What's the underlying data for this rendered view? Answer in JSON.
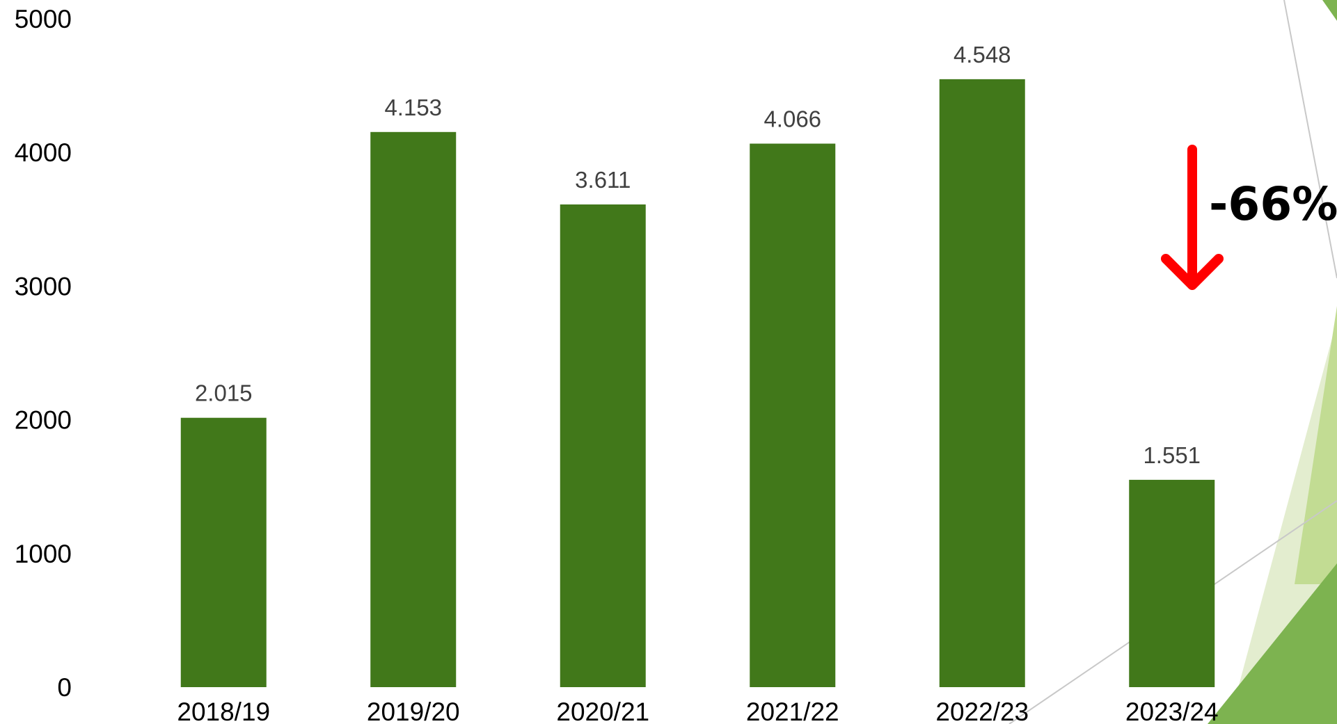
{
  "chart_data": {
    "type": "bar",
    "categories": [
      "2018/19",
      "2019/20",
      "2020/21",
      "2021/22",
      "2022/23",
      "2023/24"
    ],
    "values": [
      2015,
      4153,
      3611,
      4066,
      4548,
      1551
    ],
    "data_labels": [
      "2.015",
      "4.153",
      "3.611",
      "4.066",
      "4.548",
      "1.551"
    ],
    "y_ticks": [
      "0",
      "1000",
      "2000",
      "3000",
      "4000",
      "5000"
    ],
    "ylim": [
      0,
      5000
    ],
    "title": "",
    "xlabel": "",
    "ylabel": "",
    "grid": false,
    "bar_color": "#41781a",
    "annotation": {
      "text": "-66%",
      "arrow_direction": "down",
      "arrow_color": "#ff0000"
    }
  },
  "decoration": {
    "accent_light": "#e3edcf",
    "accent_mid": "#c2dc93",
    "accent_dark": "#7db350",
    "line_color": "#c8c8c8"
  }
}
